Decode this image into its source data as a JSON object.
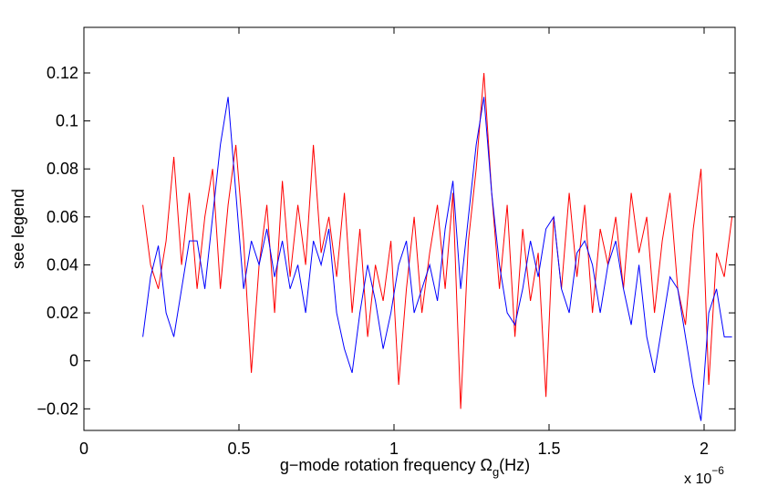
{
  "chart_data": {
    "type": "line",
    "xlabel": {
      "text": "g−mode rotation frequency  Ω",
      "sub": "g",
      "suffix": "(Hz)"
    },
    "ylabel": "see legend",
    "x_multiplier": {
      "base": "x 10",
      "exponent": "−6"
    },
    "xlim": [
      0,
      2.1
    ],
    "ylim": [
      -0.029,
      0.139
    ],
    "xticks": [
      0,
      0.5,
      1,
      1.5,
      2
    ],
    "yticks": [
      {
        "value": -0.02,
        "label": "−0.02"
      },
      0,
      0.02,
      0.04,
      0.06,
      0.08,
      0.1,
      0.12
    ],
    "grid": false,
    "x": [
      0.19,
      0.215,
      0.24,
      0.265,
      0.29,
      0.315,
      0.34,
      0.365,
      0.39,
      0.415,
      0.44,
      0.465,
      0.49,
      0.515,
      0.54,
      0.565,
      0.59,
      0.615,
      0.64,
      0.665,
      0.69,
      0.715,
      0.74,
      0.765,
      0.79,
      0.815,
      0.84,
      0.865,
      0.89,
      0.915,
      0.94,
      0.965,
      0.99,
      1.015,
      1.04,
      1.065,
      1.09,
      1.115,
      1.14,
      1.165,
      1.19,
      1.215,
      1.24,
      1.265,
      1.29,
      1.315,
      1.34,
      1.365,
      1.39,
      1.415,
      1.44,
      1.465,
      1.49,
      1.515,
      1.54,
      1.565,
      1.59,
      1.615,
      1.64,
      1.665,
      1.69,
      1.715,
      1.74,
      1.765,
      1.79,
      1.815,
      1.84,
      1.865,
      1.89,
      1.915,
      1.94,
      1.965,
      1.99,
      2.015,
      2.04,
      2.065,
      2.09
    ],
    "series": [
      {
        "color": "#ff0000",
        "values": [
          0.065,
          0.04,
          0.03,
          0.05,
          0.085,
          0.04,
          0.07,
          0.03,
          0.06,
          0.08,
          0.03,
          0.065,
          0.09,
          0.05,
          -0.005,
          0.04,
          0.065,
          0.02,
          0.075,
          0.035,
          0.065,
          0.04,
          0.09,
          0.045,
          0.06,
          0.035,
          0.07,
          0.02,
          0.055,
          0.01,
          0.04,
          0.025,
          0.05,
          -0.01,
          0.03,
          0.06,
          0.02,
          0.045,
          0.065,
          0.03,
          0.07,
          -0.02,
          0.05,
          0.08,
          0.12,
          0.07,
          0.03,
          0.065,
          0.01,
          0.055,
          0.025,
          0.045,
          -0.015,
          0.06,
          0.03,
          0.07,
          0.035,
          0.065,
          0.02,
          0.055,
          0.04,
          0.06,
          0.03,
          0.07,
          0.045,
          0.06,
          0.02,
          0.05,
          0.07,
          0.03,
          0.015,
          0.055,
          0.08,
          -0.01,
          0.045,
          0.035,
          0.06
        ]
      },
      {
        "color": "#0000ff",
        "values": [
          0.01,
          0.035,
          0.048,
          0.02,
          0.01,
          0.03,
          0.05,
          0.05,
          0.03,
          0.06,
          0.09,
          0.11,
          0.07,
          0.03,
          0.05,
          0.04,
          0.055,
          0.035,
          0.05,
          0.03,
          0.04,
          0.02,
          0.05,
          0.04,
          0.055,
          0.02,
          0.005,
          -0.005,
          0.02,
          0.04,
          0.025,
          0.005,
          0.02,
          0.04,
          0.05,
          0.02,
          0.03,
          0.04,
          0.025,
          0.055,
          0.075,
          0.03,
          0.06,
          0.09,
          0.11,
          0.07,
          0.04,
          0.02,
          0.015,
          0.03,
          0.05,
          0.035,
          0.055,
          0.06,
          0.03,
          0.02,
          0.045,
          0.05,
          0.04,
          0.02,
          0.04,
          0.05,
          0.03,
          0.015,
          0.04,
          0.01,
          -0.005,
          0.015,
          0.035,
          0.03,
          0.01,
          -0.01,
          -0.025,
          0.02,
          0.03,
          0.01,
          0.01
        ]
      }
    ]
  }
}
